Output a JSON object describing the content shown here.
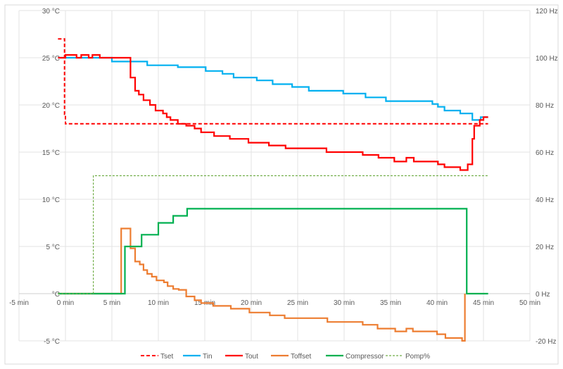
{
  "chart_data": {
    "type": "line",
    "title": "",
    "xlabel": "",
    "ylabel": "",
    "y2label": "",
    "xlim": [
      -5,
      50
    ],
    "ylim": [
      -5,
      30
    ],
    "y2lim": [
      -20,
      120
    ],
    "grid": true,
    "legend_position": "bottom",
    "x_ticks": [
      -5,
      0,
      5,
      10,
      15,
      20,
      25,
      30,
      35,
      40,
      45,
      50
    ],
    "x_tick_labels": [
      "-5 min",
      "0 min",
      "5 min",
      "10 min",
      "15 min",
      "20 min",
      "25 min",
      "30 min",
      "35 min",
      "40 min",
      "45 min",
      "50 min"
    ],
    "y_ticks": [
      30,
      25,
      20,
      15,
      10,
      5,
      0,
      -5
    ],
    "y_tick_labels": [
      "30 °C",
      "25 °C",
      "20 °C",
      "15 °C",
      "10 °C",
      "5 °C",
      "°C",
      "-5 °C"
    ],
    "y2_ticks": [
      120,
      100,
      80,
      60,
      40,
      20,
      0,
      -20
    ],
    "y2_tick_labels": [
      "120 Hz",
      "100 Hz",
      "80 Hz",
      "60 Hz",
      "40 Hz",
      "20 Hz",
      "0 Hz",
      "-20 Hz"
    ],
    "series": [
      {
        "name": "Tset",
        "axis": "left",
        "color": "#ff0000",
        "style": "dashed",
        "steps": [
          [
            -0.8,
            27
          ],
          [
            -0.1,
            19
          ],
          [
            0,
            18
          ],
          [
            45.5,
            18
          ]
        ]
      },
      {
        "name": "Tin",
        "axis": "left",
        "color": "#00b0f0",
        "style": "solid",
        "steps": [
          [
            -0.8,
            25
          ],
          [
            5.0,
            24.6
          ],
          [
            8.8,
            24.2
          ],
          [
            12.1,
            24.0
          ],
          [
            15.1,
            23.6
          ],
          [
            16.9,
            23.3
          ],
          [
            18.1,
            22.9
          ],
          [
            20.6,
            22.6
          ],
          [
            22.3,
            22.2
          ],
          [
            24.4,
            21.9
          ],
          [
            26.2,
            21.5
          ],
          [
            29.9,
            21.2
          ],
          [
            32.3,
            20.8
          ],
          [
            34.5,
            20.4
          ],
          [
            39.5,
            20.1
          ],
          [
            40.1,
            19.8
          ],
          [
            40.8,
            19.4
          ],
          [
            42.5,
            19.1
          ],
          [
            43.8,
            18.4
          ],
          [
            44.7,
            18.7
          ],
          [
            45.5,
            18.7
          ]
        ]
      },
      {
        "name": "Tout",
        "axis": "left",
        "color": "#ff0000",
        "style": "solid",
        "steps": [
          [
            -0.8,
            25
          ],
          [
            0,
            25.3
          ],
          [
            1.2,
            25
          ],
          [
            1.7,
            25.3
          ],
          [
            2.5,
            25
          ],
          [
            2.9,
            25.3
          ],
          [
            3.7,
            25
          ],
          [
            7.0,
            22.9
          ],
          [
            7.5,
            21.5
          ],
          [
            7.9,
            21.1
          ],
          [
            8.4,
            20.5
          ],
          [
            9.1,
            20.0
          ],
          [
            9.7,
            19.4
          ],
          [
            10.5,
            19.1
          ],
          [
            10.9,
            18.7
          ],
          [
            11.3,
            18.4
          ],
          [
            12.1,
            18.0
          ],
          [
            13.0,
            17.8
          ],
          [
            13.9,
            17.5
          ],
          [
            14.6,
            17.1
          ],
          [
            16.0,
            16.7
          ],
          [
            17.7,
            16.4
          ],
          [
            19.7,
            16.0
          ],
          [
            21.9,
            15.7
          ],
          [
            23.7,
            15.4
          ],
          [
            28.1,
            15.0
          ],
          [
            32.0,
            14.7
          ],
          [
            33.7,
            14.4
          ],
          [
            35.4,
            14.0
          ],
          [
            36.7,
            14.4
          ],
          [
            37.5,
            14.0
          ],
          [
            40.1,
            13.7
          ],
          [
            40.8,
            13.4
          ],
          [
            42.5,
            13.1
          ],
          [
            43.3,
            13.7
          ],
          [
            43.8,
            16.4
          ],
          [
            44.0,
            17.8
          ],
          [
            44.6,
            18.4
          ],
          [
            45.0,
            18.7
          ],
          [
            45.5,
            18.7
          ]
        ]
      },
      {
        "name": "Toffset",
        "axis": "left",
        "color": "#ed7d31",
        "style": "solid",
        "steps": [
          [
            -0.8,
            0
          ],
          [
            6.0,
            6.9
          ],
          [
            7.0,
            4.8
          ],
          [
            7.5,
            3.4
          ],
          [
            8.0,
            3.1
          ],
          [
            8.4,
            2.5
          ],
          [
            8.8,
            2.1
          ],
          [
            9.3,
            1.8
          ],
          [
            9.8,
            1.4
          ],
          [
            10.6,
            1.2
          ],
          [
            11.0,
            0.8
          ],
          [
            11.6,
            0.5
          ],
          [
            12.2,
            0.4
          ],
          [
            13.0,
            -0.3
          ],
          [
            13.9,
            -0.7
          ],
          [
            14.6,
            -1.0
          ],
          [
            15.9,
            -1.3
          ],
          [
            17.8,
            -1.6
          ],
          [
            19.8,
            -2.0
          ],
          [
            22.0,
            -2.3
          ],
          [
            23.6,
            -2.6
          ],
          [
            28.2,
            -3.0
          ],
          [
            32.0,
            -3.3
          ],
          [
            33.6,
            -3.7
          ],
          [
            35.5,
            -4.0
          ],
          [
            36.7,
            -3.7
          ],
          [
            37.4,
            -4.0
          ],
          [
            40.0,
            -4.3
          ],
          [
            40.9,
            -4.7
          ],
          [
            42.7,
            -5.0
          ],
          [
            43.0,
            0
          ],
          [
            43.0,
            0
          ]
        ]
      },
      {
        "name": "Compressor",
        "axis": "right",
        "color": "#00b050",
        "style": "solid",
        "steps": [
          [
            -0.8,
            0
          ],
          [
            6.4,
            20
          ],
          [
            8.2,
            25
          ],
          [
            10.0,
            30
          ],
          [
            11.6,
            33
          ],
          [
            13.1,
            36
          ],
          [
            43.2,
            0
          ],
          [
            45.5,
            0
          ]
        ]
      },
      {
        "name": "Pomp%",
        "axis": "right",
        "color": "#70ad47",
        "style": "dotted",
        "steps": [
          [
            -0.8,
            0
          ],
          [
            3.0,
            50
          ],
          [
            45.5,
            50
          ]
        ]
      }
    ]
  }
}
